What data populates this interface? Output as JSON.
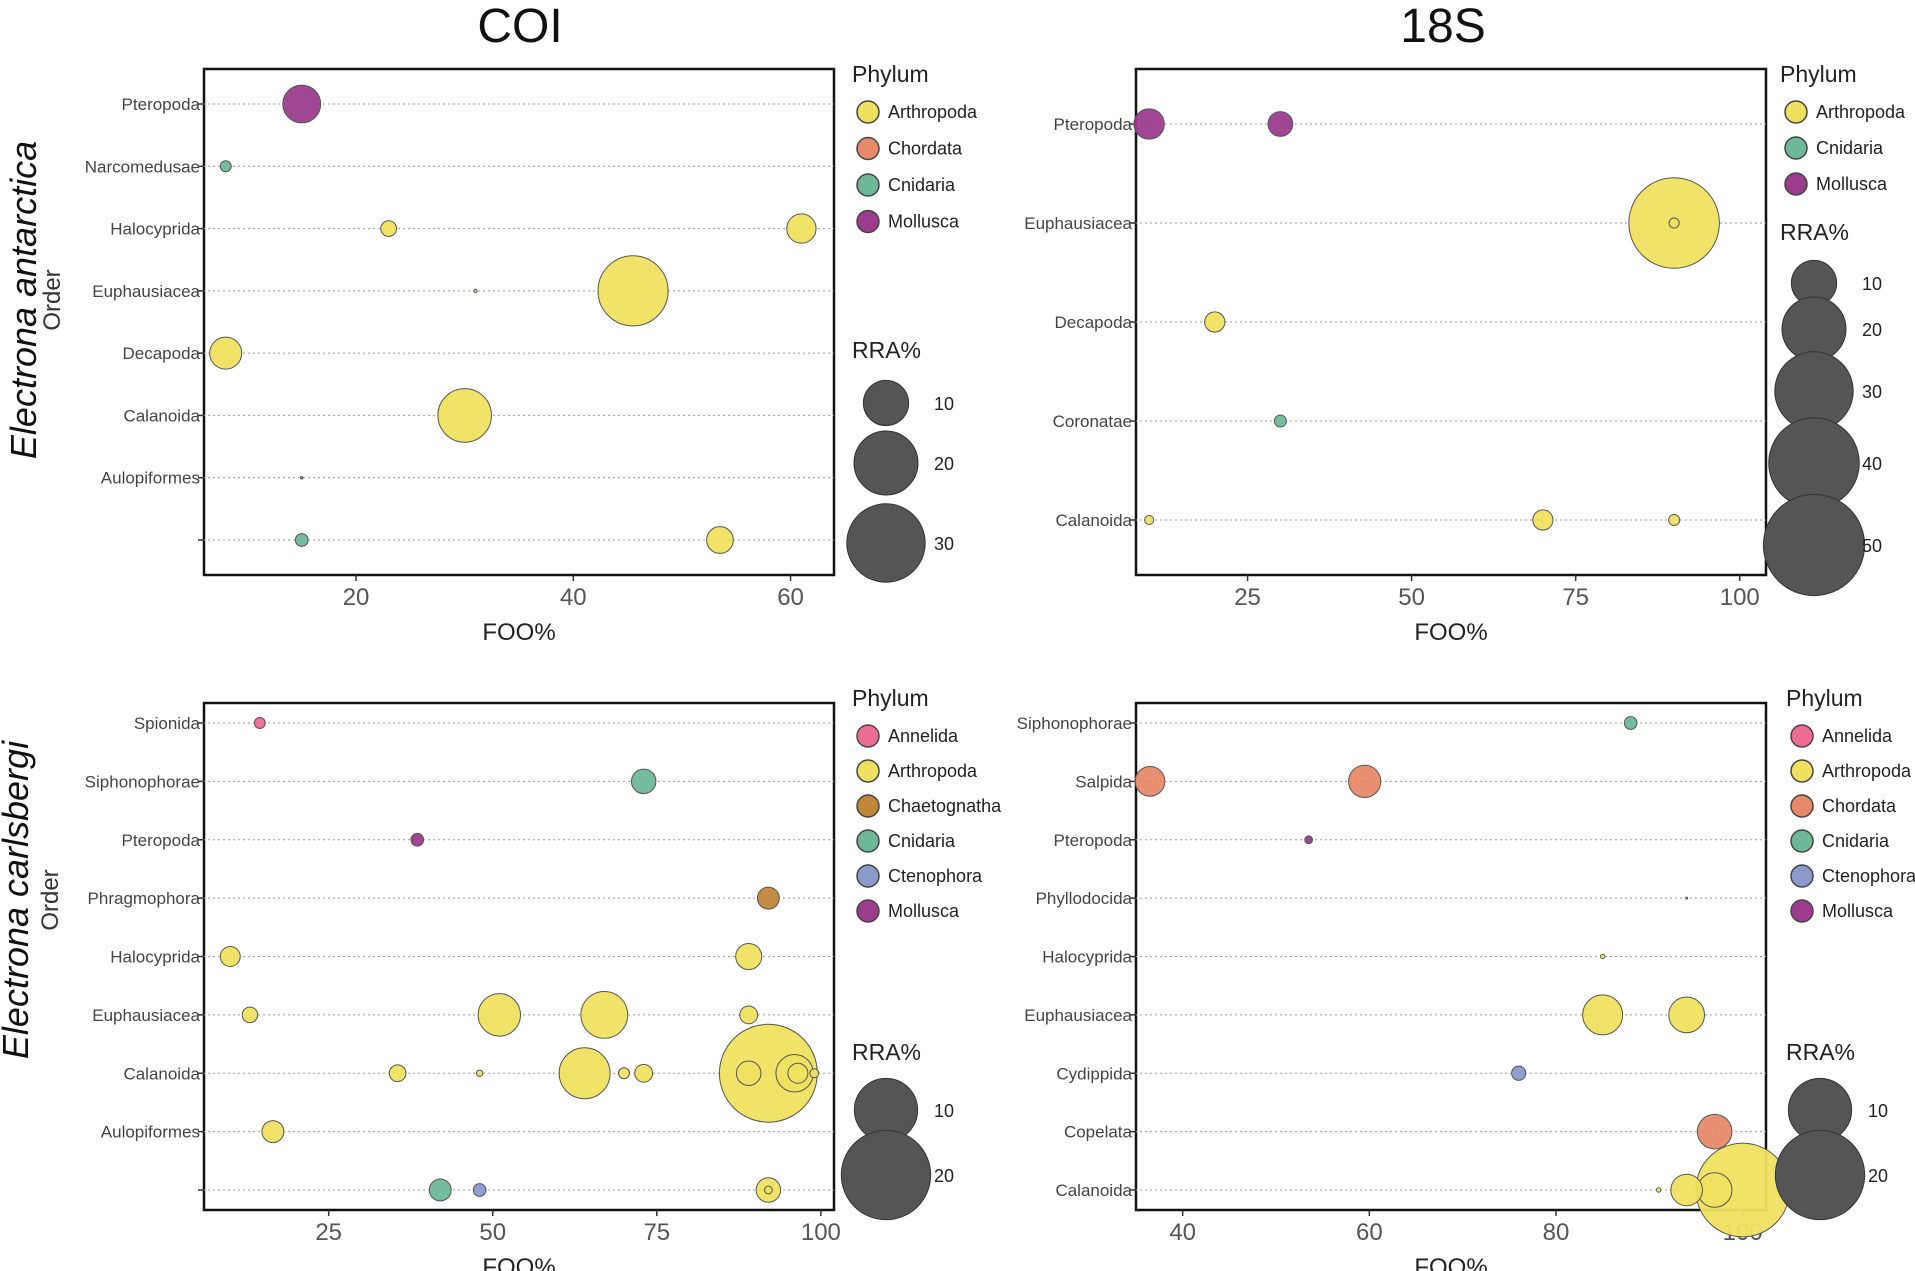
{
  "figure": {
    "col_titles": [
      "COI",
      "18S"
    ],
    "row_titles": [
      "Electrona antarctica",
      "Electrona carlsbergi"
    ],
    "y_axis_label": "Order"
  },
  "chart_data": [
    {
      "type": "scatter",
      "panel": "top-left",
      "xlabel": "FOO%",
      "xlim": [
        6,
        64
      ],
      "xticks": [
        20,
        40,
        60
      ],
      "categories": [
        "Pteropoda",
        "Narcomedusae",
        "Halocyprida",
        "Euphausiacea",
        "Decapoda",
        "Calanoida",
        "Aulopiformes",
        ""
      ],
      "legend_title": "Phylum",
      "legend": [
        {
          "name": "Arthropoda",
          "color": "#f0e060"
        },
        {
          "name": "Chordata",
          "color": "#e8896a"
        },
        {
          "name": "Cnidaria",
          "color": "#6db896"
        },
        {
          "name": "Mollusca",
          "color": "#9b3c8c"
        }
      ],
      "size_title": "RRA%",
      "size_legend": [
        10,
        20,
        30
      ],
      "points": [
        {
          "category": "Pteropoda",
          "x": 15,
          "rra": 7,
          "phylum": "Mollusca"
        },
        {
          "category": "Narcomedusae",
          "x": 8,
          "rra": 0.6,
          "phylum": "Cnidaria"
        },
        {
          "category": "Halocyprida",
          "x": 23,
          "rra": 1.2,
          "phylum": "Arthropoda"
        },
        {
          "category": "Halocyprida",
          "x": 61,
          "rra": 4.2,
          "phylum": "Arthropoda"
        },
        {
          "category": "Euphausiacea",
          "x": 31,
          "rra": 0.05,
          "phylum": "Arthropoda"
        },
        {
          "category": "Euphausiacea",
          "x": 45.5,
          "rra": 24,
          "phylum": "Arthropoda"
        },
        {
          "category": "Decapoda",
          "x": 8,
          "rra": 5,
          "phylum": "Arthropoda"
        },
        {
          "category": "Calanoida",
          "x": 30,
          "rra": 14,
          "phylum": "Arthropoda"
        },
        {
          "category": "Aulopiformes",
          "x": 15,
          "rra": 0.03,
          "phylum": "Chordata"
        },
        {
          "category": "",
          "x": 15,
          "rra": 0.8,
          "phylum": "Cnidaria"
        },
        {
          "category": "",
          "x": 53.5,
          "rra": 3.5,
          "phylum": "Arthropoda"
        }
      ]
    },
    {
      "type": "scatter",
      "panel": "top-right",
      "xlabel": "FOO%",
      "xlim": [
        8,
        104
      ],
      "xticks": [
        25,
        50,
        75,
        100
      ],
      "categories": [
        "Pteropoda",
        "Euphausiacea",
        "Decapoda",
        "Coronatae",
        "Calanoida"
      ],
      "legend_title": "Phylum",
      "legend": [
        {
          "name": "Arthropoda",
          "color": "#f0e060"
        },
        {
          "name": "Cnidaria",
          "color": "#6db896"
        },
        {
          "name": "Mollusca",
          "color": "#9b3c8c"
        }
      ],
      "size_title": "RRA%",
      "size_legend": [
        10,
        20,
        30,
        40,
        50
      ],
      "points": [
        {
          "category": "Pteropoda",
          "x": 10,
          "rra": 4.5,
          "phylum": "Mollusca"
        },
        {
          "category": "Pteropoda",
          "x": 30,
          "rra": 3,
          "phylum": "Mollusca"
        },
        {
          "category": "Euphausiacea",
          "x": 90,
          "rra": 40,
          "phylum": "Arthropoda"
        },
        {
          "category": "Euphausiacea",
          "x": 90,
          "rra": 0.5,
          "phylum": "Arthropoda"
        },
        {
          "category": "Decapoda",
          "x": 20,
          "rra": 2,
          "phylum": "Arthropoda"
        },
        {
          "category": "Coronatae",
          "x": 30,
          "rra": 0.7,
          "phylum": "Cnidaria"
        },
        {
          "category": "Calanoida",
          "x": 10,
          "rra": 0.4,
          "phylum": "Arthropoda"
        },
        {
          "category": "Calanoida",
          "x": 70,
          "rra": 2,
          "phylum": "Arthropoda"
        },
        {
          "category": "Calanoida",
          "x": 90,
          "rra": 0.6,
          "phylum": "Arthropoda"
        }
      ]
    },
    {
      "type": "scatter",
      "panel": "bottom-left",
      "xlabel": "FOO%",
      "xlim": [
        6,
        102
      ],
      "xticks": [
        25,
        50,
        75,
        100
      ],
      "categories": [
        "Spionida",
        "Siphonophorae",
        "Pteropoda",
        "Phragmophora",
        "Halocyprida",
        "Euphausiacea",
        "Calanoida",
        "Aulopiformes",
        ""
      ],
      "legend_title": "Phylum",
      "legend": [
        {
          "name": "Annelida",
          "color": "#ec6c92"
        },
        {
          "name": "Arthropoda",
          "color": "#f0e060"
        },
        {
          "name": "Chaetognatha",
          "color": "#c08638"
        },
        {
          "name": "Cnidaria",
          "color": "#6db896"
        },
        {
          "name": "Ctenophora",
          "color": "#8a9bcc"
        },
        {
          "name": "Mollusca",
          "color": "#9b3c8c"
        }
      ],
      "size_title": "RRA%",
      "size_legend": [
        10,
        20
      ],
      "points": [
        {
          "category": "Spionida",
          "x": 14.5,
          "rra": 0.3,
          "phylum": "Annelida"
        },
        {
          "category": "Siphonophorae",
          "x": 73,
          "rra": 1.5,
          "phylum": "Cnidaria"
        },
        {
          "category": "Pteropoda",
          "x": 38.5,
          "rra": 0.4,
          "phylum": "Mollusca"
        },
        {
          "category": "Phragmophora",
          "x": 92,
          "rra": 1.2,
          "phylum": "Chaetognatha"
        },
        {
          "category": "Halocyprida",
          "x": 10,
          "rra": 1,
          "phylum": "Arthropoda"
        },
        {
          "category": "Halocyprida",
          "x": 89,
          "rra": 1.7,
          "phylum": "Arthropoda"
        },
        {
          "category": "Euphausiacea",
          "x": 13,
          "rra": 0.6,
          "phylum": "Arthropoda"
        },
        {
          "category": "Euphausiacea",
          "x": 51,
          "rra": 4.5,
          "phylum": "Arthropoda"
        },
        {
          "category": "Euphausiacea",
          "x": 67,
          "rra": 5.5,
          "phylum": "Arthropoda"
        },
        {
          "category": "Euphausiacea",
          "x": 89,
          "rra": 0.8,
          "phylum": "Arthropoda"
        },
        {
          "category": "Calanoida",
          "x": 35.5,
          "rra": 0.7,
          "phylum": "Arthropoda"
        },
        {
          "category": "Calanoida",
          "x": 48,
          "rra": 0.1,
          "phylum": "Arthropoda"
        },
        {
          "category": "Calanoida",
          "x": 64,
          "rra": 6.5,
          "phylum": "Arthropoda"
        },
        {
          "category": "Calanoida",
          "x": 70,
          "rra": 0.3,
          "phylum": "Arthropoda"
        },
        {
          "category": "Calanoida",
          "x": 73,
          "rra": 0.8,
          "phylum": "Arthropoda"
        },
        {
          "category": "Calanoida",
          "x": 92,
          "rra": 24,
          "phylum": "Arthropoda"
        },
        {
          "category": "Calanoida",
          "x": 89,
          "rra": 1.5,
          "phylum": "Arthropoda"
        },
        {
          "category": "Calanoida",
          "x": 96,
          "rra": 3.5,
          "phylum": "Arthropoda"
        },
        {
          "category": "Calanoida",
          "x": 96.5,
          "rra": 1,
          "phylum": "Arthropoda"
        },
        {
          "category": "Calanoida",
          "x": 99,
          "rra": 0.2,
          "phylum": "Arthropoda"
        },
        {
          "category": "Aulopiformes",
          "x": 16.5,
          "rra": 1.2,
          "phylum": "Arthropoda"
        },
        {
          "category": "",
          "x": 42,
          "rra": 1.2,
          "phylum": "Cnidaria"
        },
        {
          "category": "",
          "x": 48,
          "rra": 0.4,
          "phylum": "Ctenophora"
        },
        {
          "category": "",
          "x": 92,
          "rra": 1.5,
          "phylum": "Arthropoda"
        },
        {
          "category": "",
          "x": 92,
          "rra": 0.15,
          "phylum": "Arthropoda"
        }
      ]
    },
    {
      "type": "scatter",
      "panel": "bottom-right",
      "xlabel": "FOO%",
      "xlim": [
        35,
        102.5
      ],
      "xticks": [
        40,
        60,
        80,
        100
      ],
      "categories": [
        "Siphonophorae",
        "Salpida",
        "Pteropoda",
        "Phyllodocida",
        "Halocyprida",
        "Euphausiacea",
        "Cydippida",
        "Copelata",
        "Calanoida"
      ],
      "legend_title": "Phylum",
      "legend": [
        {
          "name": "Annelida",
          "color": "#ec6c92"
        },
        {
          "name": "Arthropoda",
          "color": "#f0e060"
        },
        {
          "name": "Chordata",
          "color": "#e8896a"
        },
        {
          "name": "Cnidaria",
          "color": "#6db896"
        },
        {
          "name": "Ctenophora",
          "color": "#8a9bcc"
        },
        {
          "name": "Mollusca",
          "color": "#9b3c8c"
        }
      ],
      "size_title": "RRA%",
      "size_legend": [
        10,
        20
      ],
      "points": [
        {
          "category": "Siphonophorae",
          "x": 88,
          "rra": 0.4,
          "phylum": "Cnidaria"
        },
        {
          "category": "Salpida",
          "x": 36.5,
          "rra": 2.2,
          "phylum": "Chordata"
        },
        {
          "category": "Salpida",
          "x": 59.5,
          "rra": 2.6,
          "phylum": "Chordata"
        },
        {
          "category": "Pteropoda",
          "x": 53.5,
          "rra": 0.15,
          "phylum": "Mollusca"
        },
        {
          "category": "Phyllodocida",
          "x": 94,
          "rra": 0.01,
          "phylum": "Annelida"
        },
        {
          "category": "Halocyprida",
          "x": 85,
          "rra": 0.05,
          "phylum": "Arthropoda"
        },
        {
          "category": "Euphausiacea",
          "x": 85,
          "rra": 4,
          "phylum": "Arthropoda"
        },
        {
          "category": "Euphausiacea",
          "x": 94,
          "rra": 3.2,
          "phylum": "Arthropoda"
        },
        {
          "category": "Cydippida",
          "x": 76,
          "rra": 0.5,
          "phylum": "Ctenophora"
        },
        {
          "category": "Copelata",
          "x": 97,
          "rra": 3,
          "phylum": "Chordata"
        },
        {
          "category": "Calanoida",
          "x": 91,
          "rra": 0.05,
          "phylum": "Arthropoda"
        },
        {
          "category": "Calanoida",
          "x": 94,
          "rra": 2.5,
          "phylum": "Arthropoda"
        },
        {
          "category": "Calanoida",
          "x": 97,
          "rra": 3,
          "phylum": "Arthropoda"
        },
        {
          "category": "Calanoida",
          "x": 100,
          "rra": 22,
          "phylum": "Arthropoda"
        }
      ]
    }
  ]
}
